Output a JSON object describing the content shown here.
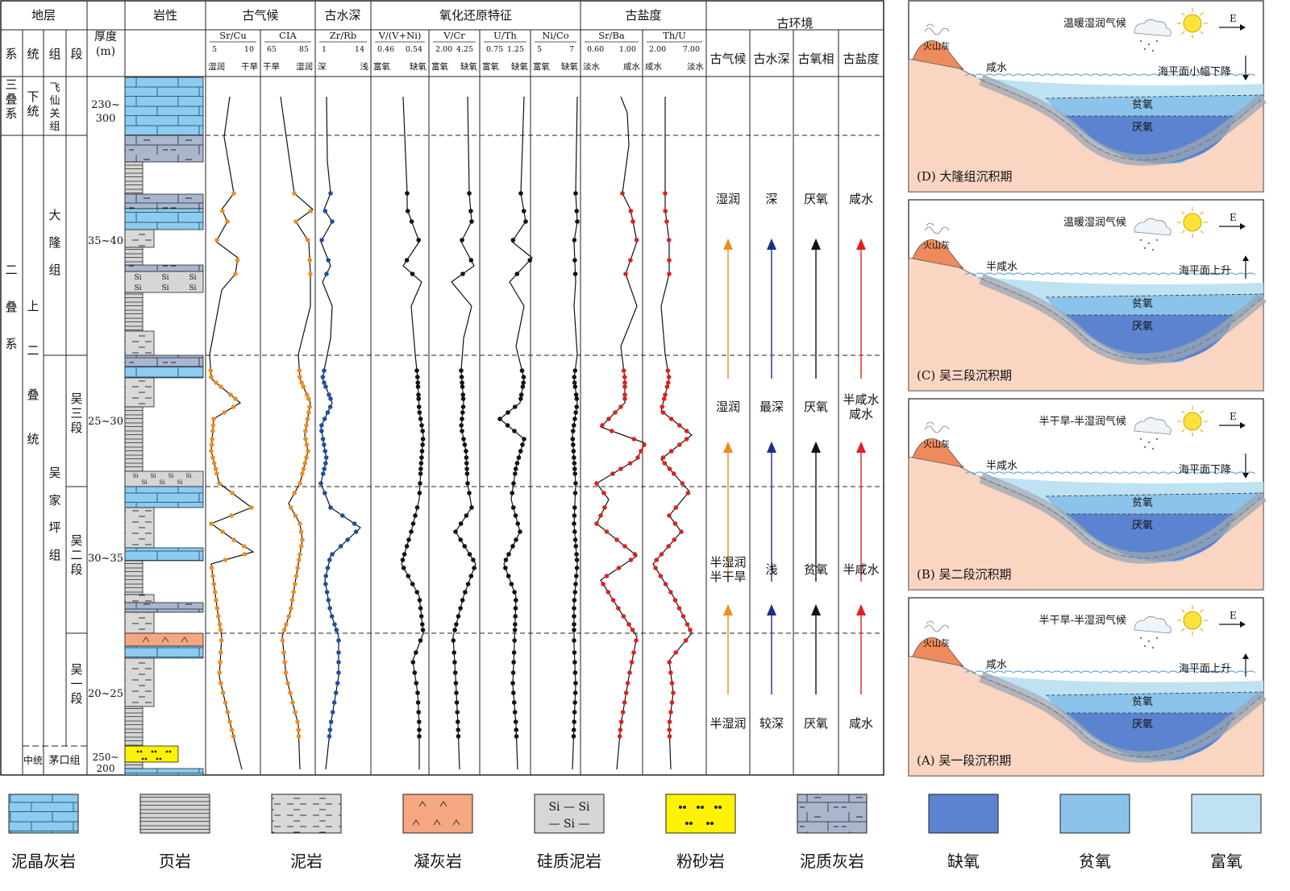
{
  "header": {
    "stratum": "地层",
    "system": "系",
    "series": "统",
    "formation": "组",
    "member": "段",
    "thickness": "厚度\n(m)",
    "lithology": "岩性",
    "paleoclimate": "古气候",
    "paleowater": "古水深",
    "redox": "氧化还原特征",
    "paleosalinity": "古盐度",
    "paleoenv": "古环境",
    "env_cols": [
      "古气候",
      "古水深",
      "古氧相",
      "古盐度"
    ]
  },
  "columns": [
    {
      "name": "Sr/Cu",
      "ticks": [
        "5",
        "10"
      ],
      "left": "湿润",
      "right": "干旱",
      "color": "#f08c1e"
    },
    {
      "name": "CIA",
      "ticks": [
        "65",
        "85"
      ],
      "left": "干旱",
      "right": "湿润",
      "color": "#f08c1e"
    },
    {
      "name": "Zr/Rb",
      "ticks": [
        "1",
        "14"
      ],
      "left": "深",
      "right": "浅",
      "color": "#1f4ea3"
    },
    {
      "name": "V/(V+Ni)",
      "ticks": [
        "0.46",
        "0.54"
      ],
      "left": "富氧",
      "right": "缺氧",
      "color": "#111111"
    },
    {
      "name": "V/Cr",
      "ticks": [
        "2.00",
        "4.25"
      ],
      "left": "富氧",
      "right": "缺氧",
      "color": "#111111"
    },
    {
      "name": "U/Th",
      "ticks": [
        "0.75",
        "1.25"
      ],
      "left": "富氧",
      "right": "缺氧",
      "color": "#111111"
    },
    {
      "name": "Ni/Co",
      "ticks": [
        "5",
        "7"
      ],
      "left": "富氧",
      "right": "缺氧",
      "color": "#111111"
    },
    {
      "name": "Sr/Ba",
      "ticks": [
        "0.60",
        "1.00"
      ],
      "left": "淡水",
      "right": "咸水",
      "color": "#e0201e"
    },
    {
      "name": "Th/U",
      "ticks": [
        "2.00",
        "7.00"
      ],
      "left": "咸水",
      "right": "淡水",
      "color": "#e0201e"
    }
  ],
  "strata": {
    "systems": [
      "三\n叠\n系",
      "二\n\n\n叠\n\n\n系"
    ],
    "series": [
      "下\n统",
      "上\n\n\n二\n\n叠\n\n统",
      "中统"
    ],
    "formations": [
      "飞\n仙\n关\n组",
      "大\n隆\n组",
      "吴\n家\n坪\n组",
      "茅口组"
    ],
    "members": [
      "吴\n三\n段",
      "吴\n二\n段",
      "吴\n一\n段"
    ],
    "thickness": [
      "230~\n300",
      "35~40",
      "25~30",
      "30~35",
      "20~25",
      "250~\n200"
    ]
  },
  "environment_rows": [
    {
      "climate": "湿润",
      "depth": "深",
      "oxygen": "厌氧",
      "salinity": "咸水"
    },
    {
      "climate": "湿润",
      "depth": "最深",
      "oxygen": "厌氧",
      "salinity": "半咸水\n咸水"
    },
    {
      "climate": "半湿润\n半干旱",
      "depth": "浅",
      "oxygen": "贫氧",
      "salinity": "半咸水"
    },
    {
      "climate": "半湿润",
      "depth": "较深",
      "oxygen": "厌氧",
      "salinity": "咸水"
    }
  ],
  "panels": [
    {
      "id": "D",
      "caption": "(D) 大隆组沉积期",
      "climate": "温暖湿润气候",
      "water": "咸水",
      "sea_level": "海平面小幅下降",
      "sea_dir": "down",
      "volcano": "火山灰",
      "east": "E",
      "zones": [
        "贫氧",
        "厌氧"
      ]
    },
    {
      "id": "C",
      "caption": "(C) 吴三段沉积期",
      "climate": "温暖湿润气候",
      "water": "半咸水",
      "sea_level": "海平面上升",
      "sea_dir": "up",
      "volcano": "火山灰",
      "east": "E",
      "zones": [
        "贫氧",
        "厌氧"
      ]
    },
    {
      "id": "B",
      "caption": "(B) 吴二段沉积期",
      "climate": "半干旱-半湿润气候",
      "water": "半咸水",
      "sea_level": "海平面下降",
      "sea_dir": "down",
      "volcano": "火山灰",
      "east": "E",
      "zones": [
        "贫氧",
        "厌氧"
      ]
    },
    {
      "id": "A",
      "caption": "(A) 吴一段沉积期",
      "climate": "半干旱-半湿润气候",
      "water": "咸水",
      "sea_level": "海平面上升",
      "sea_dir": "up",
      "volcano": "火山灰",
      "east": "E",
      "zones": [
        "贫氧",
        "厌氧"
      ]
    }
  ],
  "si_label": "Si",
  "legend": [
    {
      "label": "泥晶灰岩",
      "pattern": "micrite"
    },
    {
      "label": "页岩",
      "pattern": "shale"
    },
    {
      "label": "泥岩",
      "pattern": "mudstone"
    },
    {
      "label": "凝灰岩",
      "pattern": "tuff"
    },
    {
      "label": "硅质泥岩",
      "pattern": "siliceous",
      "symbols": [
        "Si — Si",
        "— Si —"
      ]
    },
    {
      "label": "粉砂岩",
      "pattern": "siltstone"
    },
    {
      "label": "泥质灰岩",
      "pattern": "argillaceous"
    },
    {
      "label": "缺氧",
      "pattern": "anoxic",
      "color": "#5b83cf"
    },
    {
      "label": "贫氧",
      "pattern": "dysoxic",
      "color": "#8cc3ea"
    },
    {
      "label": "富氧",
      "pattern": "oxic",
      "color": "#bfe2f3"
    }
  ],
  "colors": {
    "limestone": "#8dcbef",
    "argillaceous": "#a9b6cc",
    "mudstone": "#d8d8d8",
    "tuff": "#f4a781",
    "silt": "#fff200",
    "orange": "#f08c1e",
    "blue": "#1f4ea3",
    "red": "#e0201e",
    "navy": "#1b2f8a",
    "land": "#f9d5c2",
    "volcano": "#ef8a5c"
  }
}
